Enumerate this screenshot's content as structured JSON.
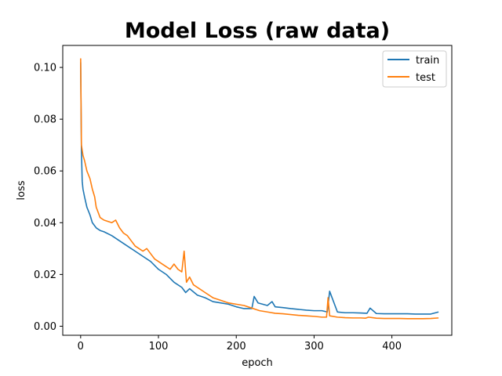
{
  "chart_data": {
    "type": "line",
    "title": "Model Loss (raw data)",
    "xlabel": "epoch",
    "ylabel": "loss",
    "xlim": [
      -23,
      477
    ],
    "ylim": [
      -0.0035,
      0.1085
    ],
    "x_ticks": [
      0,
      100,
      200,
      300,
      400
    ],
    "y_ticks": [
      0.0,
      0.02,
      0.04,
      0.06,
      0.08,
      0.1
    ],
    "x_tick_labels": [
      "0",
      "100",
      "200",
      "300",
      "400"
    ],
    "y_tick_labels": [
      "0.00",
      "0.02",
      "0.04",
      "0.06",
      "0.08",
      "0.10"
    ],
    "grid": false,
    "legend_position": "top-right",
    "series": [
      {
        "name": "train",
        "color": "#1f77b4",
        "x": [
          0,
          1,
          2,
          3,
          5,
          8,
          12,
          15,
          20,
          25,
          30,
          40,
          50,
          60,
          70,
          80,
          90,
          100,
          110,
          120,
          130,
          135,
          140,
          150,
          160,
          170,
          180,
          190,
          200,
          210,
          220,
          223,
          228,
          240,
          246,
          250,
          260,
          270,
          280,
          290,
          300,
          310,
          317,
          320,
          330,
          340,
          350,
          360,
          368,
          372,
          380,
          390,
          400,
          410,
          420,
          430,
          440,
          450,
          460
        ],
        "y": [
          0.102,
          0.068,
          0.056,
          0.053,
          0.05,
          0.046,
          0.043,
          0.04,
          0.038,
          0.037,
          0.0365,
          0.035,
          0.033,
          0.031,
          0.029,
          0.027,
          0.025,
          0.022,
          0.02,
          0.017,
          0.015,
          0.013,
          0.0145,
          0.012,
          0.011,
          0.0095,
          0.009,
          0.0085,
          0.0075,
          0.0068,
          0.0068,
          0.0115,
          0.009,
          0.008,
          0.0095,
          0.0075,
          0.0072,
          0.0068,
          0.0065,
          0.0062,
          0.006,
          0.006,
          0.0055,
          0.0135,
          0.0055,
          0.0052,
          0.0052,
          0.0051,
          0.005,
          0.007,
          0.0049,
          0.0048,
          0.0048,
          0.0048,
          0.0048,
          0.0047,
          0.0047,
          0.0047,
          0.0055
        ]
      },
      {
        "name": "test",
        "color": "#ff7f0e",
        "x": [
          0,
          1,
          2,
          3,
          5,
          8,
          12,
          15,
          18,
          20,
          25,
          30,
          40,
          45,
          50,
          55,
          60,
          65,
          70,
          75,
          80,
          85,
          90,
          95,
          100,
          105,
          110,
          115,
          120,
          125,
          130,
          133,
          136,
          140,
          145,
          150,
          160,
          170,
          180,
          190,
          200,
          210,
          220,
          225,
          230,
          240,
          250,
          260,
          270,
          280,
          290,
          300,
          310,
          316,
          318,
          320,
          330,
          340,
          350,
          360,
          366,
          370,
          380,
          390,
          400,
          410,
          420,
          430,
          440,
          450,
          460
        ],
        "y": [
          0.1035,
          0.07,
          0.068,
          0.066,
          0.064,
          0.06,
          0.057,
          0.053,
          0.05,
          0.046,
          0.042,
          0.041,
          0.04,
          0.041,
          0.038,
          0.036,
          0.035,
          0.033,
          0.031,
          0.03,
          0.029,
          0.03,
          0.028,
          0.026,
          0.025,
          0.024,
          0.023,
          0.022,
          0.024,
          0.022,
          0.021,
          0.029,
          0.017,
          0.019,
          0.016,
          0.015,
          0.013,
          0.011,
          0.01,
          0.009,
          0.0085,
          0.008,
          0.007,
          0.0065,
          0.006,
          0.0055,
          0.005,
          0.0048,
          0.0045,
          0.0042,
          0.004,
          0.0038,
          0.0035,
          0.0035,
          0.011,
          0.004,
          0.0035,
          0.0033,
          0.0032,
          0.0032,
          0.0031,
          0.0035,
          0.0031,
          0.003,
          0.003,
          0.003,
          0.0029,
          0.0029,
          0.0029,
          0.003,
          0.0032
        ]
      }
    ]
  }
}
